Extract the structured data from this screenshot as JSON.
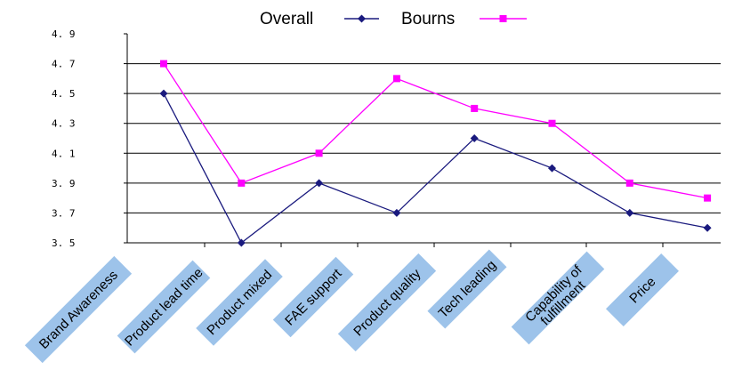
{
  "chart_data": {
    "type": "line",
    "categories": [
      "Brand Awareness",
      "Product lead time",
      "Product mixed",
      "FAE support",
      "Product quality",
      "Tech leading",
      "Capability of fulfillment",
      "Price"
    ],
    "series": [
      {
        "name": "Overall",
        "color": "#1a1a7e",
        "marker": "diamond",
        "values": [
          4.5,
          3.5,
          3.9,
          3.7,
          4.2,
          4.0,
          3.7,
          3.6
        ]
      },
      {
        "name": "Bourns",
        "color": "#ff00ff",
        "marker": "square",
        "values": [
          4.7,
          3.9,
          4.1,
          4.6,
          4.4,
          4.3,
          3.9,
          3.8
        ]
      }
    ],
    "yticks": [
      "4. 9",
      "4. 7",
      "4. 5",
      "4. 3",
      "4. 1",
      "3. 9",
      "3. 7",
      "3. 5"
    ],
    "ylim": [
      3.5,
      4.9
    ],
    "grid": true,
    "legend_position": "top",
    "label_box_color": "#9dc3ea"
  }
}
